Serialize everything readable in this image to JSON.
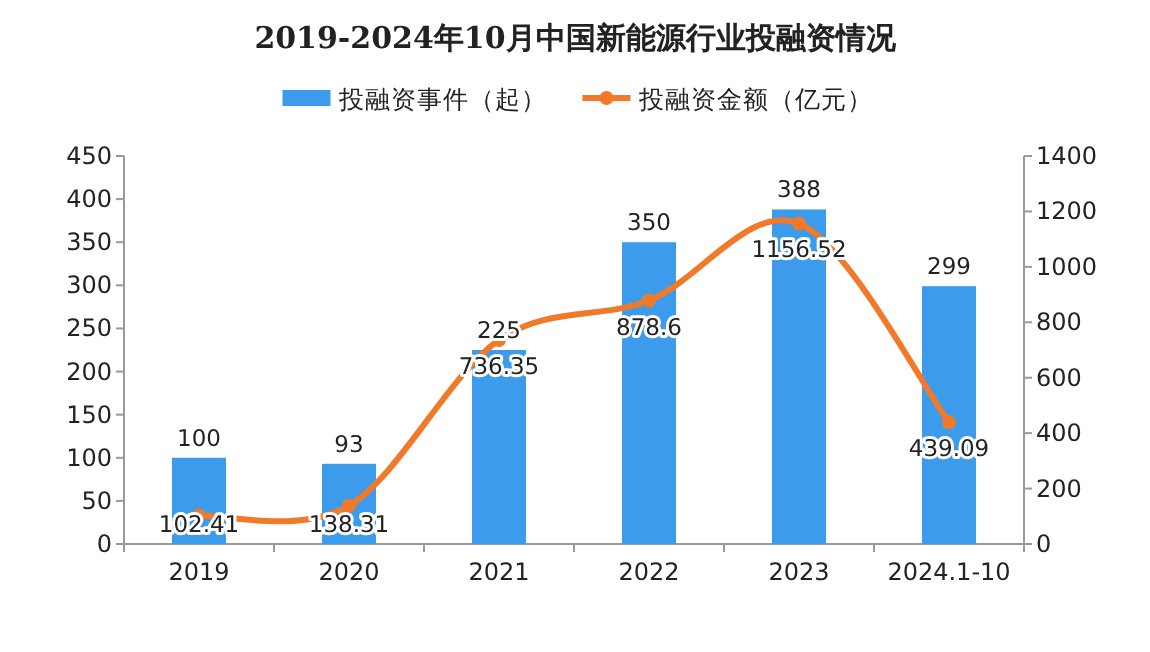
{
  "chart_data": {
    "type": "bar",
    "title": "2019-2024年10月中国新能源行业投融资情况",
    "categories": [
      "2019",
      "2020",
      "2021",
      "2022",
      "2023",
      "2024.1-10"
    ],
    "series": [
      {
        "name": "投融资事件（起）",
        "color": "#3d9bec",
        "values": [
          100,
          93,
          225,
          350,
          388,
          299
        ]
      },
      {
        "name": "投融资金额（亿元）",
        "color": "#f07a2a",
        "type": "line",
        "axis": "y2",
        "marker": "circle",
        "values": [
          102.41,
          138.31,
          736.35,
          878.6,
          1156.52,
          439.09
        ]
      }
    ],
    "ylim": [
      0,
      450
    ],
    "yticks": [
      0,
      50,
      100,
      150,
      200,
      250,
      300,
      350,
      400,
      450
    ],
    "y2lim": [
      0,
      1400
    ],
    "y2ticks": [
      0,
      200,
      400,
      600,
      800,
      1000,
      1200,
      1400
    ],
    "data_labels": true,
    "legend": "top"
  }
}
